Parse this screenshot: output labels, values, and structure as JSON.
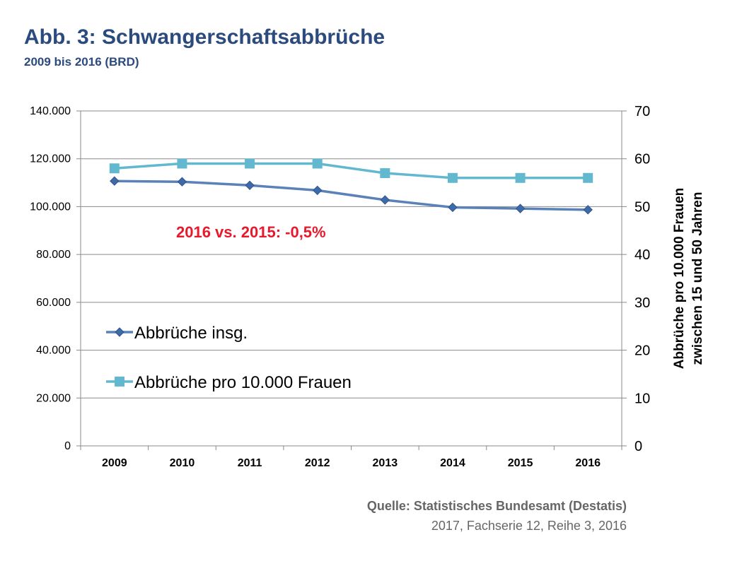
{
  "header": {
    "title": "Abb. 3: Schwangerschaftsabbrüche",
    "subtitle": "2009 bis 2016 (BRD)"
  },
  "chart_data": {
    "type": "line",
    "categories": [
      "2009",
      "2010",
      "2011",
      "2012",
      "2013",
      "2014",
      "2015",
      "2016"
    ],
    "series": [
      {
        "name": "Abbrüche insg.",
        "axis": "left",
        "marker": "diamond",
        "color": "#5a82b8",
        "values": [
          110700,
          110400,
          108900,
          106800,
          102800,
          99700,
          99200,
          98700
        ]
      },
      {
        "name": "Abbrüche pro 10.000 Frauen",
        "axis": "right",
        "marker": "square",
        "color": "#62b8cf",
        "values": [
          58,
          59,
          59,
          59,
          57,
          56,
          56,
          56
        ]
      }
    ],
    "y_left": {
      "min": 0,
      "max": 140000,
      "ticks": [
        "0",
        "20.000",
        "40.000",
        "60.000",
        "80.000",
        "100.000",
        "120.000",
        "140.000"
      ]
    },
    "y_right": {
      "min": 0,
      "max": 70,
      "ticks": [
        "0",
        "10",
        "20",
        "30",
        "40",
        "50",
        "60",
        "70"
      ],
      "label_lines": [
        "Abbrüche pro 10.000 Frauen",
        "zwischen 15 und 50 Jahren"
      ]
    },
    "annotation": {
      "text": "2016 vs. 2015: -0,5%",
      "color": "#e8192c"
    },
    "grid": true,
    "legend_position": "left"
  },
  "source": {
    "line1": "Quelle: Statistisches Bundesamt (Destatis)",
    "line2": "2017, Fachserie 12, Reihe 3, 2016"
  }
}
